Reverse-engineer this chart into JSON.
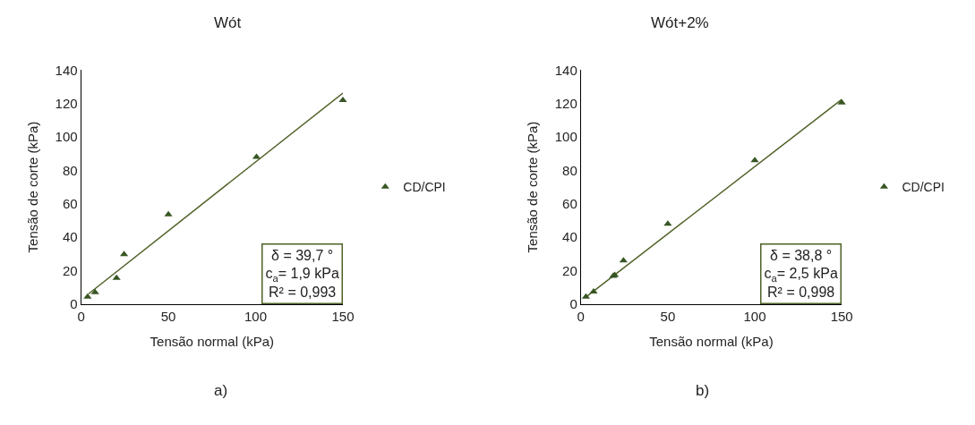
{
  "chart_data": [
    {
      "type": "scatter",
      "title": "Wót",
      "xlabel": "Tensão normal (kPa)",
      "ylabel": "Tensão de corte (kPa)",
      "xlim": [
        0,
        150
      ],
      "xticks": [
        0,
        50,
        100,
        150
      ],
      "ylim": [
        0,
        140
      ],
      "yticks": [
        0,
        20,
        40,
        60,
        80,
        100,
        120,
        140
      ],
      "marker": "triangle",
      "legend": "right",
      "series": [
        {
          "type": "line",
          "marker": "none",
          "color": "#4f6228",
          "x": [
            4.2,
            150
          ],
          "values": [
            6,
            126.3
          ]
        },
        {
          "name": "CD/CPI",
          "color": "#375623",
          "x": [
            3.7,
            8,
            20.3,
            24.6,
            50,
            100.5,
            150
          ],
          "values": [
            4.3,
            6.9,
            15.5,
            29.7,
            53.6,
            88,
            122
          ]
        }
      ],
      "annotations": [
        "δ = 39,7 °\nc$_{a}$= 1,9 kPa\nR² = 0,993",
        "a)"
      ]
    },
    {
      "type": "scatter",
      "title": "Wót+2%",
      "xlabel": "Tensão normal (kPa)",
      "ylabel": "Tensão de corte (kPa)",
      "xlim": [
        0,
        150
      ],
      "xticks": [
        0,
        50,
        100,
        150
      ],
      "ylim": [
        0,
        140
      ],
      "yticks": [
        0,
        20,
        40,
        60,
        80,
        100,
        120,
        140
      ],
      "marker": "triangle",
      "legend": "right",
      "series": [
        {
          "type": "line",
          "marker": "none",
          "color": "#4f6228",
          "x": [
            2.5,
            150
          ],
          "values": [
            3.8,
            122.5
          ]
        },
        {
          "name": "CD/CPI",
          "color": "#375623",
          "x": [
            2.9,
            7.3,
            18.6,
            19.5,
            24.5,
            50,
            100,
            150
          ],
          "values": [
            4.3,
            7.4,
            16.7,
            17.2,
            26,
            48,
            86,
            120.6
          ]
        }
      ],
      "annotations": [
        "δ = 38,8 °\nc$_{a}$= 2,5 kPa\nR² = 0,998",
        "b)"
      ]
    }
  ]
}
